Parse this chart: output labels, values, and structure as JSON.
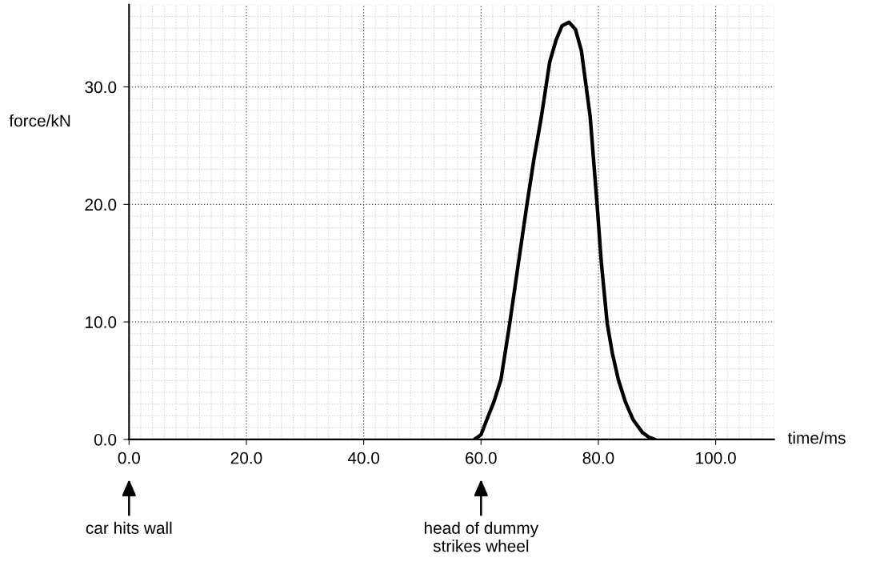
{
  "chart_data": {
    "type": "line",
    "xlabel": "time/ms",
    "ylabel": "force/kN",
    "xlim": [
      0,
      110
    ],
    "ylim": [
      0,
      37
    ],
    "xticks": [
      {
        "value": 0,
        "label": "0.0"
      },
      {
        "value": 20,
        "label": "20.0"
      },
      {
        "value": 40,
        "label": "40.0"
      },
      {
        "value": 60,
        "label": "60.0"
      },
      {
        "value": 80,
        "label": "80.0"
      },
      {
        "value": 100,
        "label": "100.0"
      }
    ],
    "yticks": [
      {
        "value": 0,
        "label": "0.0"
      },
      {
        "value": 10,
        "label": "10.0"
      },
      {
        "value": 20,
        "label": "20.0"
      },
      {
        "value": 30,
        "label": "30.0"
      }
    ],
    "grid": true,
    "marker": "none",
    "line_style": "solid",
    "series": [
      {
        "color": "#000000",
        "x": [
          58.9,
          60.0,
          61.0,
          62.2,
          63.4,
          64.9,
          66.4,
          67.8,
          69.0,
          70.3,
          71.7,
          72.8,
          73.8,
          75.0,
          76.1,
          77.1,
          78.6,
          79.8,
          80.5,
          81.5,
          82.4,
          83.4,
          84.6,
          85.9,
          87.5,
          88.6,
          89.6
        ],
        "values": [
          0,
          0.4,
          1.7,
          3.2,
          5.1,
          9.9,
          15.1,
          19.9,
          23.8,
          27.5,
          32.1,
          34.0,
          35.2,
          35.5,
          34.9,
          33.1,
          27.5,
          19.9,
          15.1,
          9.9,
          7.3,
          5.1,
          3.2,
          1.7,
          0.6,
          0.2,
          0
        ]
      }
    ],
    "annotations": [
      "car hits wall",
      "head of dummy\nstrikes wheel"
    ]
  }
}
